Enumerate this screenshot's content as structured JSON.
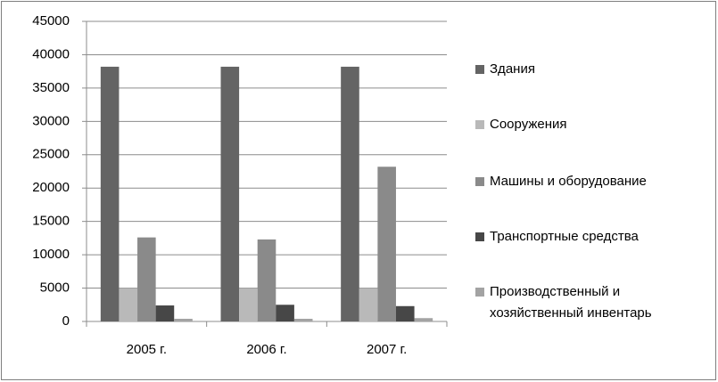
{
  "chart_data": {
    "type": "bar",
    "categories": [
      "2005 г.",
      "2006 г.",
      "2007 г."
    ],
    "series": [
      {
        "name": "Здания",
        "color": "#646464",
        "values": [
          38200,
          38200,
          38200
        ]
      },
      {
        "name": "Сооружения",
        "color": "#b9b9b9",
        "values": [
          5000,
          5000,
          5000
        ]
      },
      {
        "name": "Машины и оборудование",
        "color": "#8a8a8a",
        "values": [
          12600,
          12300,
          23200
        ]
      },
      {
        "name": "Транспортные средства",
        "color": "#474747",
        "values": [
          2400,
          2500,
          2300
        ]
      },
      {
        "name": "Производственный и хозяйственный инвентарь",
        "color": "#a3a3a3",
        "values": [
          400,
          400,
          500
        ]
      }
    ],
    "ylim": [
      0,
      45000
    ],
    "yticks": [
      0,
      5000,
      10000,
      15000,
      20000,
      25000,
      30000,
      35000,
      40000,
      45000
    ],
    "grid": true,
    "legend": "right"
  }
}
